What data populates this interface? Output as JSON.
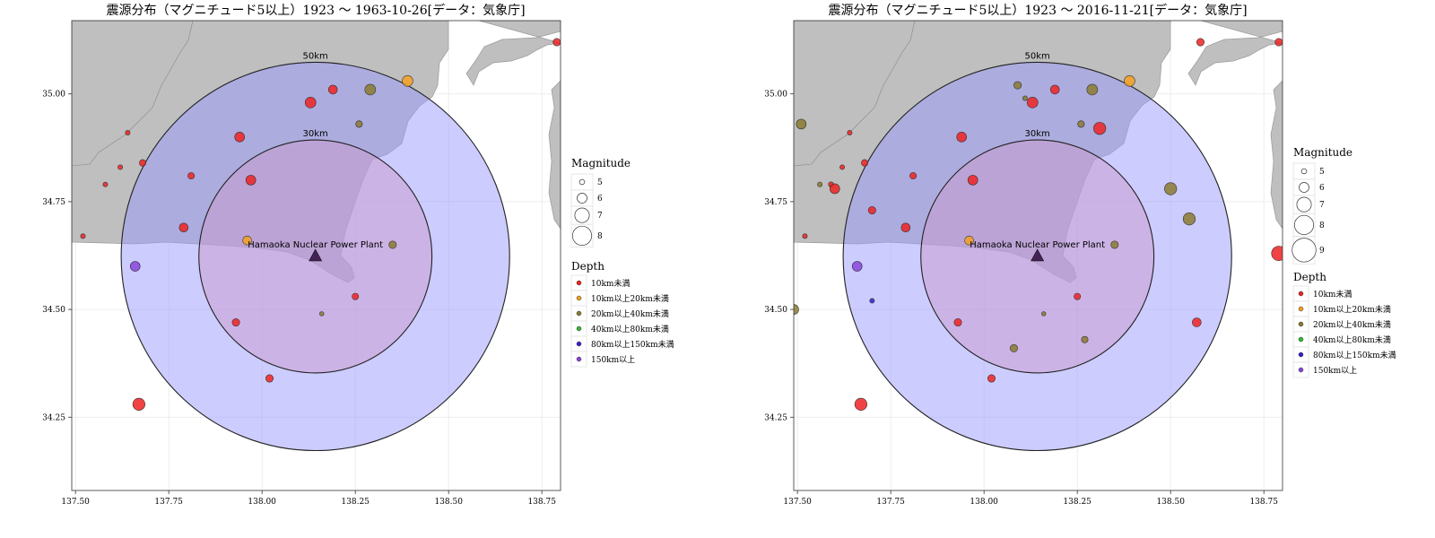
{
  "panels": [
    {
      "title": "震源分布（マグニチュード5以上）1923 ～ 1963-10-26[データ：気象庁]",
      "magnitude_legend": [
        5,
        6,
        7,
        8
      ],
      "quakes": [
        {
          "lon": 137.52,
          "lat": 34.67,
          "mag": 4.9,
          "depth": "10km未満"
        },
        {
          "lon": 137.58,
          "lat": 34.79,
          "mag": 4.9,
          "depth": "10km未満"
        },
        {
          "lon": 137.62,
          "lat": 34.83,
          "mag": 4.9,
          "depth": "10km未満"
        },
        {
          "lon": 137.64,
          "lat": 34.91,
          "mag": 4.9,
          "depth": "10km未満"
        },
        {
          "lon": 137.68,
          "lat": 34.84,
          "mag": 5.3,
          "depth": "10km未満"
        },
        {
          "lon": 137.67,
          "lat": 34.28,
          "mag": 6.5,
          "depth": "10km未満"
        },
        {
          "lon": 137.66,
          "lat": 34.6,
          "mag": 6.0,
          "depth": "150km以上"
        },
        {
          "lon": 137.79,
          "lat": 34.69,
          "mag": 5.8,
          "depth": "10km未満"
        },
        {
          "lon": 137.81,
          "lat": 34.81,
          "mag": 5.3,
          "depth": "10km未満"
        },
        {
          "lon": 137.94,
          "lat": 34.9,
          "mag": 6.0,
          "depth": "10km未満"
        },
        {
          "lon": 137.97,
          "lat": 34.8,
          "mag": 6.0,
          "depth": "10km未満"
        },
        {
          "lon": 137.96,
          "lat": 34.66,
          "mag": 5.8,
          "depth": "10km以上20km未満"
        },
        {
          "lon": 137.93,
          "lat": 34.47,
          "mag": 5.5,
          "depth": "10km未満"
        },
        {
          "lon": 138.02,
          "lat": 34.34,
          "mag": 5.5,
          "depth": "10km未満"
        },
        {
          "lon": 138.13,
          "lat": 34.98,
          "mag": 6.2,
          "depth": "10km未満"
        },
        {
          "lon": 138.19,
          "lat": 35.01,
          "mag": 5.8,
          "depth": "10km未満"
        },
        {
          "lon": 138.29,
          "lat": 35.01,
          "mag": 6.2,
          "depth": "20km以上40km未満"
        },
        {
          "lon": 138.39,
          "lat": 35.03,
          "mag": 6.2,
          "depth": "10km以上20km未満"
        },
        {
          "lon": 138.26,
          "lat": 34.93,
          "mag": 5.3,
          "depth": "20km以上40km未満"
        },
        {
          "lon": 138.35,
          "lat": 34.65,
          "mag": 5.5,
          "depth": "20km以上40km未満"
        },
        {
          "lon": 138.25,
          "lat": 34.53,
          "mag": 5.3,
          "depth": "10km未満"
        },
        {
          "lon": 138.16,
          "lat": 34.49,
          "mag": 4.8,
          "depth": "20km以上40km未満"
        },
        {
          "lon": 138.79,
          "lat": 35.12,
          "mag": 5.5,
          "depth": "10km未満"
        }
      ]
    },
    {
      "title": "震源分布（マグニチュード5以上）1923 ～ 2016-11-21[データ：気象庁]",
      "magnitude_legend": [
        5,
        6,
        7,
        8,
        9
      ],
      "quakes": [
        {
          "lon": 137.52,
          "lat": 34.67,
          "mag": 4.9,
          "depth": "10km未満"
        },
        {
          "lon": 137.51,
          "lat": 34.93,
          "mag": 6.0,
          "depth": "20km以上40km未満"
        },
        {
          "lon": 137.49,
          "lat": 34.5,
          "mag": 6.0,
          "depth": "20km以上40km未満"
        },
        {
          "lon": 137.56,
          "lat": 34.79,
          "mag": 4.9,
          "depth": "20km以上40km未満"
        },
        {
          "lon": 137.59,
          "lat": 34.79,
          "mag": 5.0,
          "depth": "10km未満"
        },
        {
          "lon": 137.6,
          "lat": 34.78,
          "mag": 6.0,
          "depth": "10km未満"
        },
        {
          "lon": 137.62,
          "lat": 34.83,
          "mag": 4.9,
          "depth": "10km未満"
        },
        {
          "lon": 137.64,
          "lat": 34.91,
          "mag": 4.9,
          "depth": "10km未満"
        },
        {
          "lon": 137.68,
          "lat": 34.84,
          "mag": 5.3,
          "depth": "10km未満"
        },
        {
          "lon": 137.67,
          "lat": 34.28,
          "mag": 6.5,
          "depth": "10km未満"
        },
        {
          "lon": 137.66,
          "lat": 34.6,
          "mag": 6.0,
          "depth": "150km以上"
        },
        {
          "lon": 137.7,
          "lat": 34.52,
          "mag": 4.9,
          "depth": "80km以上150km未満"
        },
        {
          "lon": 137.7,
          "lat": 34.73,
          "mag": 5.5,
          "depth": "10km未満"
        },
        {
          "lon": 137.79,
          "lat": 34.69,
          "mag": 5.8,
          "depth": "10km未満"
        },
        {
          "lon": 137.81,
          "lat": 34.81,
          "mag": 5.3,
          "depth": "10km未満"
        },
        {
          "lon": 137.94,
          "lat": 34.9,
          "mag": 6.0,
          "depth": "10km未満"
        },
        {
          "lon": 137.97,
          "lat": 34.8,
          "mag": 6.0,
          "depth": "10km未満"
        },
        {
          "lon": 137.96,
          "lat": 34.66,
          "mag": 5.8,
          "depth": "10km以上20km未満"
        },
        {
          "lon": 137.93,
          "lat": 34.47,
          "mag": 5.5,
          "depth": "10km未満"
        },
        {
          "lon": 138.02,
          "lat": 34.34,
          "mag": 5.5,
          "depth": "10km未満"
        },
        {
          "lon": 138.08,
          "lat": 34.41,
          "mag": 5.5,
          "depth": "20km以上40km未満"
        },
        {
          "lon": 138.09,
          "lat": 35.02,
          "mag": 5.5,
          "depth": "20km以上40km未満"
        },
        {
          "lon": 138.11,
          "lat": 34.99,
          "mag": 4.9,
          "depth": "20km以上40km未満"
        },
        {
          "lon": 138.13,
          "lat": 34.98,
          "mag": 6.2,
          "depth": "10km未満"
        },
        {
          "lon": 138.19,
          "lat": 35.01,
          "mag": 5.8,
          "depth": "10km未満"
        },
        {
          "lon": 138.29,
          "lat": 35.01,
          "mag": 6.2,
          "depth": "20km以上40km未満"
        },
        {
          "lon": 138.39,
          "lat": 35.03,
          "mag": 6.2,
          "depth": "10km以上20km未満"
        },
        {
          "lon": 138.26,
          "lat": 34.93,
          "mag": 5.3,
          "depth": "20km以上40km未満"
        },
        {
          "lon": 138.31,
          "lat": 34.92,
          "mag": 6.5,
          "depth": "10km未満"
        },
        {
          "lon": 138.35,
          "lat": 34.65,
          "mag": 5.5,
          "depth": "20km以上40km未満"
        },
        {
          "lon": 138.25,
          "lat": 34.53,
          "mag": 5.3,
          "depth": "10km未満"
        },
        {
          "lon": 138.16,
          "lat": 34.49,
          "mag": 4.8,
          "depth": "20km以上40km未満"
        },
        {
          "lon": 138.27,
          "lat": 34.43,
          "mag": 5.3,
          "depth": "20km以上40km未満"
        },
        {
          "lon": 138.5,
          "lat": 34.78,
          "mag": 6.5,
          "depth": "20km以上40km未満"
        },
        {
          "lon": 138.55,
          "lat": 34.71,
          "mag": 6.5,
          "depth": "20km以上40km未満"
        },
        {
          "lon": 138.57,
          "lat": 34.47,
          "mag": 5.8,
          "depth": "10km未満"
        },
        {
          "lon": 138.58,
          "lat": 35.12,
          "mag": 5.5,
          "depth": "10km未満"
        },
        {
          "lon": 138.79,
          "lat": 35.12,
          "mag": 5.5,
          "depth": "10km未満"
        },
        {
          "lon": 138.79,
          "lat": 34.63,
          "mag": 7.0,
          "depth": "10km未満"
        }
      ]
    }
  ],
  "shared": {
    "plant": {
      "lon": 138.143,
      "lat": 34.623,
      "label": "Hamaoka Nuclear Power Plant"
    },
    "rings": [
      {
        "radius_km": 50,
        "label": "50km",
        "fill": "#9999ff"
      },
      {
        "radius_km": 30,
        "label": "30km",
        "fill": "#cc99cc"
      }
    ],
    "x_ticks": [
      {
        "value": 137.5,
        "label": "137.50"
      },
      {
        "value": 137.75,
        "label": "137.75"
      },
      {
        "value": 138.0,
        "label": "138.00"
      },
      {
        "value": 138.25,
        "label": "138.25"
      },
      {
        "value": 138.5,
        "label": "138.50"
      },
      {
        "value": 138.75,
        "label": "138.75"
      }
    ],
    "y_ticks": [
      {
        "value": 34.25,
        "label": "34.25"
      },
      {
        "value": 34.5,
        "label": "34.50"
      },
      {
        "value": 34.75,
        "label": "34.75"
      },
      {
        "value": 35.0,
        "label": "35.00"
      }
    ],
    "xlim": [
      137.49,
      138.8
    ],
    "ylim": [
      34.08,
      35.17
    ],
    "magnitude_title": "Magnitude",
    "depth_title": "Depth",
    "depth_legend": [
      {
        "label": "10km未満",
        "color": "#ee2222"
      },
      {
        "label": "10km以上20km未満",
        "color": "#f2a020"
      },
      {
        "label": "20km以上40km未満",
        "color": "#8a7a30"
      },
      {
        "label": "40km以上80km未満",
        "color": "#33bb33"
      },
      {
        "label": "80km以上150km未満",
        "color": "#3322cc"
      },
      {
        "label": "150km以上",
        "color": "#8844dd"
      }
    ],
    "colors": {
      "land": "#bfbfbf",
      "coast": "#999999",
      "grid": "#e8e8e8",
      "frame": "#333333",
      "plant_marker": "#442255"
    }
  }
}
